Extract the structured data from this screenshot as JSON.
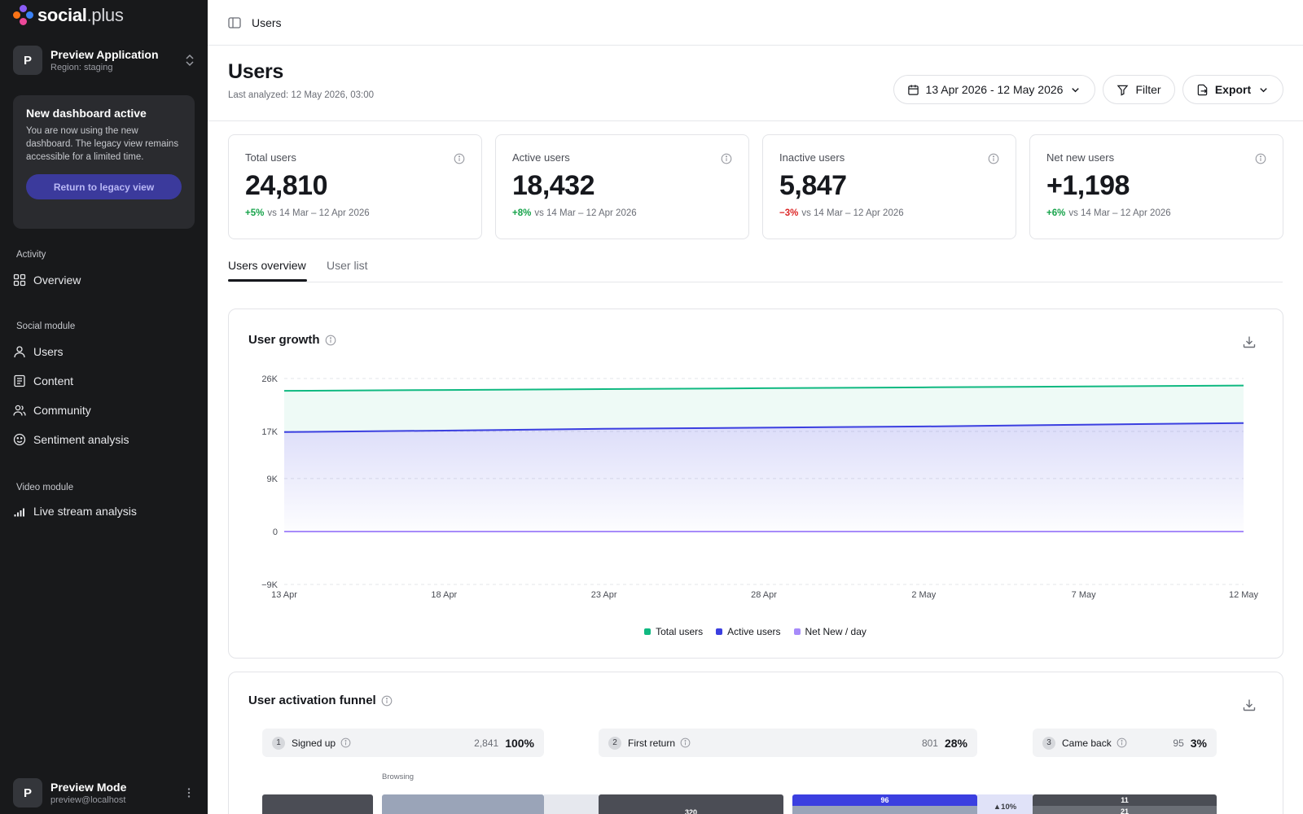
{
  "brand": {
    "name": "social",
    "suffix": ".plus"
  },
  "app": {
    "avatar": "P",
    "name": "Preview Application",
    "region": "Region: staging"
  },
  "notice": {
    "title": "New dashboard active",
    "body": "You are now using the new dashboard. The legacy view remains accessible for a limited time.",
    "button": "Return to legacy view"
  },
  "nav": {
    "activity_label": "Activity",
    "overview": "Overview",
    "social_label": "Social module",
    "users": "Users",
    "content": "Content",
    "community": "Community",
    "sentiment": "Sentiment analysis",
    "video_label": "Video module",
    "livestream": "Live stream analysis"
  },
  "footer_user": {
    "avatar": "P",
    "name": "Preview Mode",
    "email": "preview@localhost"
  },
  "topbar": {
    "breadcrumb": "Users"
  },
  "header": {
    "title": "Users",
    "last_analyzed": "Last analyzed: 12 May 2026, 03:00",
    "date_range": "13 Apr 2026 - 12 May 2026",
    "filter": "Filter",
    "export": "Export"
  },
  "kpis": [
    {
      "label": "Total users",
      "value": "24,810",
      "delta": "+5%",
      "compare": "vs 14 Mar – 12 Apr 2026",
      "trend": "up"
    },
    {
      "label": "Active users",
      "value": "18,432",
      "delta": "+8%",
      "compare": "vs 14 Mar – 12 Apr 2026",
      "trend": "up"
    },
    {
      "label": "Inactive users",
      "value": "5,847",
      "delta": "−3%",
      "compare": "vs 14 Mar – 12 Apr 2026",
      "trend": "down"
    },
    {
      "label": "Net new users",
      "value": "+1,198",
      "delta": "+6%",
      "compare": "vs 14 Mar – 12 Apr 2026",
      "trend": "up"
    }
  ],
  "tabs": {
    "overview": "Users overview",
    "list": "User list"
  },
  "growth": {
    "title": "User growth"
  },
  "chart_data": {
    "type": "area",
    "title": "User growth",
    "x_tick_labels": [
      "13 Apr",
      "18 Apr",
      "23 Apr",
      "28 Apr",
      "2 May",
      "7 May",
      "12 May"
    ],
    "y_tick_labels": [
      "26K",
      "17K",
      "9K",
      "0",
      "−9K"
    ],
    "ylim": [
      -9000,
      26000
    ],
    "grid": true,
    "legend_position": "bottom-center",
    "series": [
      {
        "name": "Total users",
        "color": "#10b981",
        "x": [
          "13 Apr",
          "18 Apr",
          "23 Apr",
          "28 Apr",
          "2 May",
          "7 May",
          "12 May"
        ],
        "values": [
          23900,
          24050,
          24200,
          24350,
          24500,
          24650,
          24810
        ]
      },
      {
        "name": "Active users",
        "color": "#3b3fe0",
        "x": [
          "13 Apr",
          "18 Apr",
          "23 Apr",
          "28 Apr",
          "2 May",
          "7 May",
          "12 May"
        ],
        "values": [
          16900,
          17150,
          17450,
          17650,
          17850,
          18150,
          18432
        ]
      },
      {
        "name": "Net New / day",
        "color": "#a78bfa",
        "x": [
          "13 Apr",
          "18 Apr",
          "23 Apr",
          "28 Apr",
          "2 May",
          "7 May",
          "12 May"
        ],
        "values": [
          0,
          0,
          0,
          0,
          0,
          0,
          0
        ]
      }
    ]
  },
  "funnel": {
    "title": "User activation funnel",
    "browsing_label": "Browsing",
    "steps": [
      {
        "num": "1",
        "label": "Signed up",
        "count": "2,841",
        "pct": "100%"
      },
      {
        "num": "2",
        "label": "First return",
        "count": "801",
        "pct": "28%"
      },
      {
        "num": "3",
        "label": "Came back",
        "count": "95",
        "pct": "3%"
      }
    ],
    "bar_labels": [
      "320",
      "96",
      "▲10%",
      "11",
      "21"
    ]
  }
}
